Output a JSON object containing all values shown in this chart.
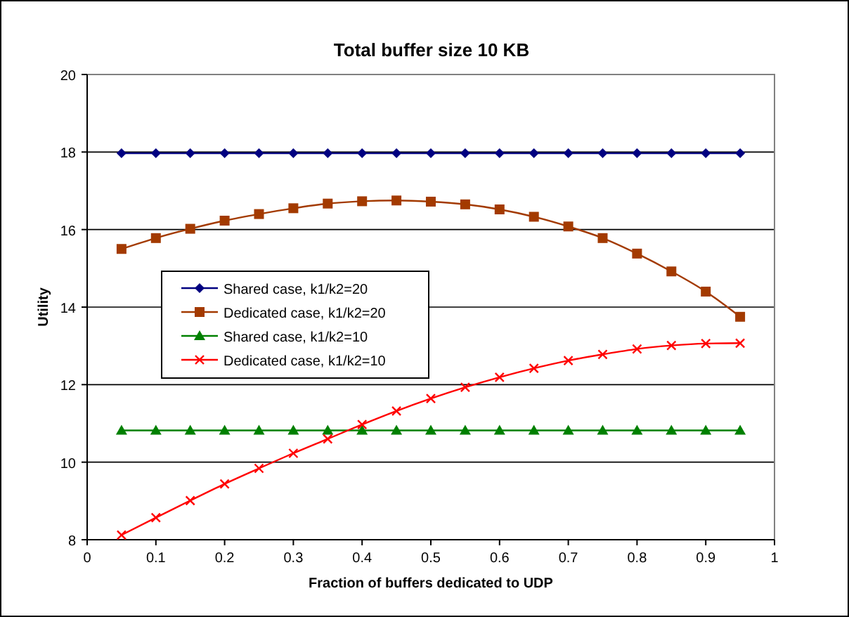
{
  "chart_data": {
    "type": "line",
    "title": "Total buffer size 10 KB",
    "xlabel": "Fraction of buffers dedicated to UDP",
    "ylabel": "Utility",
    "x": [
      0.05,
      0.1,
      0.15,
      0.2,
      0.25,
      0.3,
      0.35,
      0.4,
      0.45,
      0.5,
      0.55,
      0.6,
      0.65,
      0.7,
      0.75,
      0.8,
      0.85,
      0.9,
      0.95
    ],
    "xlim": [
      0,
      1
    ],
    "xticks": [
      0,
      0.1,
      0.2,
      0.3,
      0.4,
      0.5,
      0.6,
      0.7,
      0.8,
      0.9,
      1
    ],
    "ylim": [
      8,
      20
    ],
    "yticks": [
      8,
      10,
      12,
      14,
      16,
      18,
      20
    ],
    "grid": "y",
    "legend": "left",
    "series": [
      {
        "name": "Shared case, k1/k2=20",
        "color": "#000080",
        "marker": "diamond",
        "values": [
          17.97,
          17.97,
          17.97,
          17.97,
          17.97,
          17.97,
          17.97,
          17.97,
          17.97,
          17.97,
          17.97,
          17.97,
          17.97,
          17.97,
          17.97,
          17.97,
          17.97,
          17.97,
          17.97
        ]
      },
      {
        "name": "Dedicated case, k1/k2=20",
        "color": "#a33a00",
        "marker": "square",
        "values": [
          15.5,
          15.78,
          16.02,
          16.23,
          16.4,
          16.55,
          16.67,
          16.73,
          16.75,
          16.72,
          16.65,
          16.52,
          16.33,
          16.08,
          15.78,
          15.38,
          14.92,
          14.4,
          13.75
        ]
      },
      {
        "name": "Shared case, k1/k2=10",
        "color": "#008000",
        "marker": "triangle",
        "values": [
          10.82,
          10.82,
          10.82,
          10.82,
          10.82,
          10.82,
          10.82,
          10.82,
          10.82,
          10.82,
          10.82,
          10.82,
          10.82,
          10.82,
          10.82,
          10.82,
          10.82,
          10.82,
          10.82
        ]
      },
      {
        "name": "Dedicated case, k1/k2=10",
        "color": "#ff0000",
        "marker": "cross",
        "values": [
          8.12,
          8.57,
          9.01,
          9.44,
          9.84,
          10.23,
          10.6,
          10.97,
          11.32,
          11.64,
          11.93,
          12.19,
          12.42,
          12.62,
          12.78,
          12.92,
          13.01,
          13.06,
          13.07
        ]
      }
    ]
  }
}
